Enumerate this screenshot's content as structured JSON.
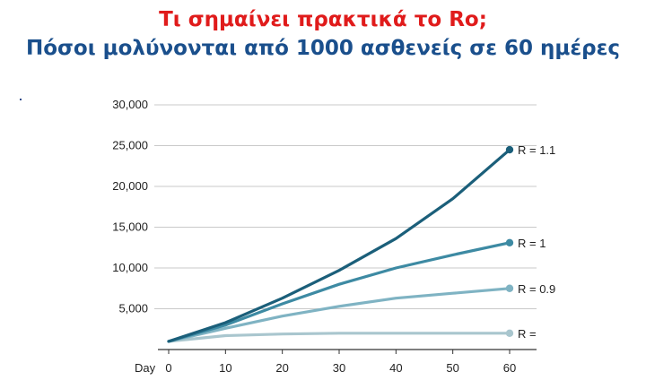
{
  "title": {
    "line1": "Τι σημαίνει πρακτικά το Ro;",
    "line2": "Πόσοι μολύνονται από 1000 ασθενείς σε 60 ημέρες"
  },
  "chart_data": {
    "type": "line",
    "title": "",
    "xlabel": "Day",
    "ylabel": "",
    "xlim": [
      0,
      60
    ],
    "ylim": [
      0,
      30000
    ],
    "x_ticks": [
      0,
      10,
      20,
      30,
      40,
      50,
      60
    ],
    "x_tick_labels": [
      "0",
      "10",
      "20",
      "30",
      "40",
      "50",
      "60"
    ],
    "y_ticks": [
      5000,
      10000,
      15000,
      20000,
      25000,
      30000
    ],
    "y_tick_labels": [
      "5,000",
      "10,000",
      "15,000",
      "20,000",
      "25,000",
      "30,000"
    ],
    "grid": "horizontal",
    "legend": "end-of-line labels",
    "x": [
      0,
      10,
      20,
      30,
      40,
      50,
      60
    ],
    "series": [
      {
        "name": "R = 1.1",
        "color": "#1b5f7a",
        "values": [
          1000,
          3300,
          6300,
          9700,
          13600,
          18500,
          24500
        ]
      },
      {
        "name": "R = 1",
        "color": "#3d8aa3",
        "values": [
          1000,
          3000,
          5600,
          8000,
          10000,
          11600,
          13100
        ]
      },
      {
        "name": "R = 0.9",
        "color": "#7fb3c3",
        "values": [
          1000,
          2600,
          4100,
          5300,
          6300,
          6900,
          7500
        ]
      },
      {
        "name": "R = ",
        "color": "#a9c6ce",
        "values": [
          1000,
          1700,
          1900,
          2000,
          2000,
          2000,
          2000
        ]
      }
    ]
  }
}
